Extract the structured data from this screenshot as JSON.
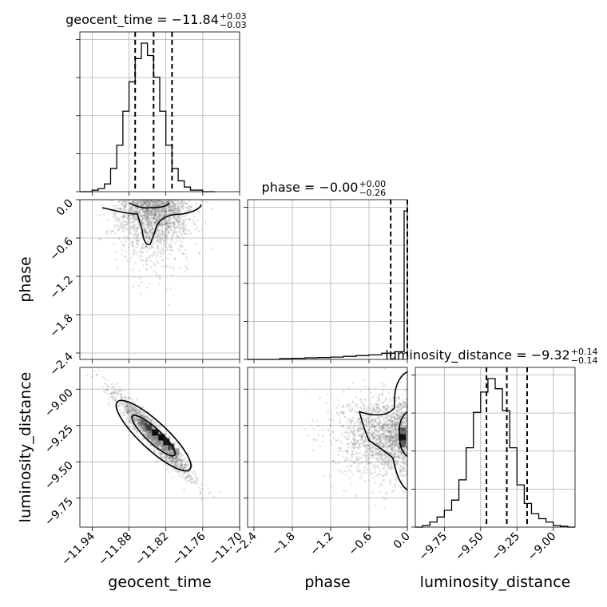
{
  "chart_data": {
    "type": "corner",
    "grid": true,
    "parameters": [
      {
        "name": "geocent_time",
        "label": "geocent_time",
        "range": [
          -11.96,
          -11.7
        ],
        "ticks": [
          "−11.94",
          "−11.88",
          "−11.82",
          "−11.76",
          "−11.70"
        ],
        "tick_values": [
          -11.94,
          -11.88,
          -11.82,
          -11.76,
          -11.7
        ],
        "title": {
          "text": "geocent_time = −11.84",
          "sup": "+0.03",
          "sub": "−0.03"
        },
        "quantiles": [
          -11.87,
          -11.84,
          -11.81
        ],
        "hist_bins": [
          -11.96,
          -11.94,
          -11.93,
          -11.92,
          -11.91,
          -11.9,
          -11.89,
          -11.88,
          -11.87,
          -11.86,
          -11.85,
          -11.84,
          -11.83,
          -11.82,
          -11.81,
          -11.8,
          -11.79,
          -11.78,
          -11.77,
          -11.76,
          -11.75,
          -11.74
        ],
        "hist_counts": [
          0.0,
          0.01,
          0.02,
          0.05,
          0.15,
          0.3,
          0.52,
          0.71,
          0.86,
          0.96,
          0.88,
          0.74,
          0.52,
          0.3,
          0.15,
          0.07,
          0.03,
          0.01,
          0.01,
          0.0,
          0.0
        ]
      },
      {
        "name": "phase",
        "label": "phase",
        "range": [
          -2.5,
          0.0
        ],
        "ticks": [
          "−2.4",
          "−1.8",
          "−1.2",
          "−0.6",
          "0.0"
        ],
        "tick_values": [
          -2.4,
          -1.8,
          -1.2,
          -0.6,
          0.0
        ],
        "title": {
          "text": "phase = −0.00",
          "sup": "+0.00",
          "sub": "−0.26"
        },
        "quantiles": [
          -0.26,
          -0.0
        ],
        "hist_bins": [
          -2.5,
          -2.4,
          -2.2,
          -2.0,
          -1.8,
          -1.6,
          -1.4,
          -1.2,
          -1.0,
          -0.8,
          -0.6,
          -0.4,
          -0.2,
          -0.05,
          0.0
        ],
        "hist_counts": [
          0.0,
          0.0,
          0.0,
          0.005,
          0.007,
          0.01,
          0.012,
          0.015,
          0.02,
          0.025,
          0.03,
          0.04,
          0.05,
          0.97
        ]
      },
      {
        "name": "luminosity_distance",
        "label": "luminosity_distance",
        "range": [
          -9.95,
          -8.85
        ],
        "ticks": [
          "−9.75",
          "−9.50",
          "−9.25",
          "−9.00"
        ],
        "tick_values": [
          -9.75,
          -9.5,
          -9.25,
          -9.0
        ],
        "title": {
          "text": "luminosity_distance = −9.32",
          "sup": "+0.14",
          "sub": "−0.14"
        },
        "quantiles": [
          -9.46,
          -9.32,
          -9.18
        ],
        "hist_bins": [
          -9.95,
          -9.9,
          -9.85,
          -9.8,
          -9.75,
          -9.7,
          -9.65,
          -9.6,
          -9.55,
          -9.5,
          -9.45,
          -9.4,
          -9.35,
          -9.3,
          -9.25,
          -9.2,
          -9.15,
          -9.1,
          -9.05,
          -9.0,
          -8.95,
          -8.9,
          -8.85
        ],
        "hist_counts": [
          0.0,
          0.01,
          0.03,
          0.06,
          0.1,
          0.16,
          0.28,
          0.47,
          0.68,
          0.8,
          0.88,
          0.82,
          0.69,
          0.47,
          0.25,
          0.14,
          0.08,
          0.05,
          0.03,
          0.01,
          0.005,
          0.0
        ]
      }
    ],
    "pairs": [
      {
        "x": "geocent_time",
        "y": "phase",
        "density_peak": [
          -11.84,
          -0.03
        ],
        "spread_x": 0.03,
        "spread_y": 0.45,
        "orientation": "vertical-band-pinned-at-0"
      },
      {
        "x": "geocent_time",
        "y": "luminosity_distance",
        "density_peak": [
          -11.84,
          -9.32
        ],
        "correlation": -0.95,
        "spread_x": 0.03,
        "spread_y": 0.14
      },
      {
        "x": "phase",
        "y": "luminosity_distance",
        "density_peak": [
          -0.02,
          -9.32
        ],
        "spread_x": 0.5,
        "spread_y": 0.14
      }
    ]
  }
}
